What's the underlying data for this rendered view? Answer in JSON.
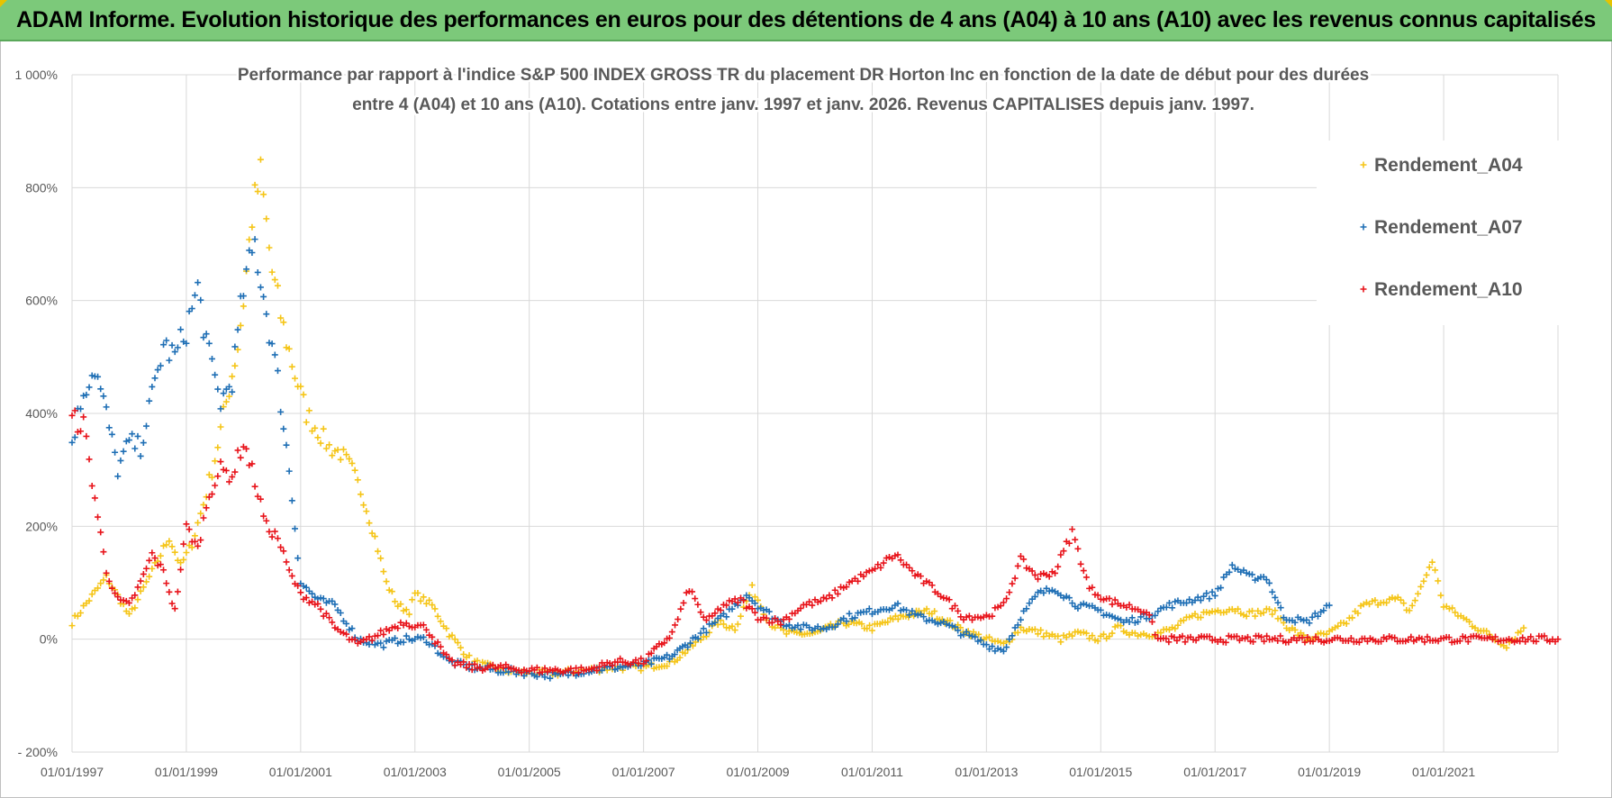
{
  "banner": {
    "title": "ADAM Informe. Evolution historique des performances en euros pour des détentions de 4 ans (A04) à 10 ans (A10) avec les revenus connus capitalisés"
  },
  "colors": {
    "banner_bg": "#7cc97a",
    "a04": "#f5c518",
    "a07": "#1f6fb5",
    "a10": "#e8141b",
    "grid": "#d9d9d9",
    "text": "#595959"
  },
  "chart_data": {
    "type": "scatter",
    "title_lines": [
      "Performance par rapport à l'indice S&P 500 INDEX GROSS TR  du placement DR Horton Inc en fonction de la date de début pour des durées",
      "entre 4 (A04) et 10 ans (A10).  Cotations entre janv. 1997 et janv. 2026. Revenus CAPITALISES  depuis janv. 1997."
    ],
    "xlabel": "",
    "ylabel": "",
    "x_range": [
      1997.0,
      2023.0
    ],
    "ylim": [
      -200,
      1000
    ],
    "y_ticks": [
      -200,
      0,
      200,
      400,
      600,
      800,
      1000
    ],
    "y_tick_labels": [
      "- 200%",
      "0%",
      "200%",
      "400%",
      "600%",
      "800%",
      "1 000%"
    ],
    "x_ticks": [
      1997,
      1999,
      2001,
      2003,
      2005,
      2007,
      2009,
      2011,
      2013,
      2015,
      2017,
      2019,
      2021
    ],
    "x_tick_labels": [
      "01/01/1997",
      "01/01/1999",
      "01/01/2001",
      "01/01/2003",
      "01/01/2005",
      "01/01/2007",
      "01/01/2009",
      "01/01/2011",
      "01/01/2013",
      "01/01/2015",
      "01/01/2017",
      "01/01/2019",
      "01/01/2021"
    ],
    "legend": [
      "Rendement_A04",
      "Rendement_A07",
      "Rendement_A10"
    ],
    "legend_position": "top-right",
    "grid": true,
    "series": [
      {
        "name": "Rendement_A04",
        "x": [
          1997.0,
          1997.3,
          1997.6,
          1997.9,
          1998.0,
          1998.3,
          1998.5,
          1998.7,
          1998.9,
          1999.1,
          1999.3,
          1999.5,
          1999.7,
          1999.9,
          2000.0,
          2000.15,
          2000.3,
          2000.5,
          2000.7,
          2000.9,
          2001.1,
          2001.3,
          2001.5,
          2001.7,
          2001.9,
          2002.1,
          2002.3,
          2002.5,
          2002.7,
          2002.9,
          2003.0,
          2003.3,
          2003.6,
          2004.0,
          2004.5,
          2005.0,
          2005.5,
          2006.0,
          2006.5,
          2007.0,
          2007.5,
          2008.0,
          2008.3,
          2008.6,
          2008.9,
          2009.2,
          2009.5,
          2010.0,
          2010.5,
          2011.0,
          2011.5,
          2012.0,
          2012.5,
          2013.0,
          2013.3,
          2013.6,
          2014.0,
          2014.3,
          2014.6,
          2015.0,
          2015.3,
          2015.6,
          2016.0,
          2016.3,
          2016.6,
          2017.0,
          2017.3,
          2017.6,
          2018.0,
          2018.3,
          2018.6,
          2019.0,
          2019.3,
          2019.6,
          2020.0,
          2020.2,
          2020.4,
          2020.6,
          2020.8,
          2021.0,
          2021.3,
          2021.6,
          2021.9,
          2022.1,
          2022.4
        ],
        "y": [
          30,
          70,
          110,
          60,
          40,
          100,
          140,
          180,
          130,
          170,
          240,
          320,
          420,
          520,
          600,
          750,
          820,
          650,
          550,
          470,
          400,
          370,
          340,
          330,
          300,
          250,
          180,
          100,
          60,
          50,
          80,
          60,
          10,
          -40,
          -55,
          -60,
          -60,
          -55,
          -50,
          -50,
          -40,
          0,
          30,
          20,
          90,
          30,
          10,
          10,
          30,
          20,
          40,
          50,
          20,
          0,
          -10,
          20,
          10,
          0,
          10,
          0,
          20,
          10,
          10,
          20,
          40,
          50,
          55,
          45,
          50,
          20,
          0,
          10,
          30,
          60,
          70,
          70,
          50,
          90,
          140,
          60,
          40,
          20,
          0,
          -10,
          20
        ]
      },
      {
        "name": "Rendement_A07",
        "x": [
          1997.0,
          1997.2,
          1997.4,
          1997.6,
          1997.8,
          1998.0,
          1998.2,
          1998.4,
          1998.6,
          1998.8,
          1999.0,
          1999.2,
          1999.4,
          1999.6,
          1999.8,
          2000.0,
          2000.2,
          2000.4,
          2000.6,
          2000.8,
          2001.0,
          2001.3,
          2001.6,
          2002.0,
          2002.4,
          2002.8,
          2003.2,
          2003.6,
          2004.0,
          2004.5,
          2005.0,
          2005.5,
          2006.0,
          2006.5,
          2007.0,
          2007.5,
          2008.0,
          2008.4,
          2008.8,
          2009.0,
          2009.4,
          2009.8,
          2010.2,
          2010.6,
          2011.0,
          2011.4,
          2011.8,
          2012.2,
          2012.6,
          2013.0,
          2013.3,
          2013.6,
          2013.9,
          2014.2,
          2014.6,
          2015.0,
          2015.4,
          2015.8,
          2016.2,
          2016.6,
          2017.0,
          2017.3,
          2017.6,
          2017.9,
          2018.2,
          2018.6,
          2019.0
        ],
        "y": [
          350,
          440,
          480,
          400,
          300,
          350,
          340,
          430,
          520,
          500,
          550,
          620,
          500,
          420,
          460,
          620,
          700,
          580,
          460,
          300,
          100,
          70,
          60,
          0,
          -10,
          0,
          0,
          -40,
          -50,
          -55,
          -60,
          -65,
          -55,
          -50,
          -45,
          -30,
          10,
          40,
          80,
          60,
          30,
          20,
          20,
          40,
          50,
          60,
          40,
          30,
          10,
          -10,
          -20,
          40,
          80,
          90,
          60,
          50,
          30,
          40,
          60,
          70,
          80,
          130,
          110,
          110,
          40,
          30,
          60
        ]
      },
      {
        "name": "Rendement_A10",
        "x": [
          1997.0,
          1997.2,
          1997.4,
          1997.6,
          1997.8,
          1998.0,
          1998.2,
          1998.4,
          1998.6,
          1998.8,
          1999.0,
          1999.2,
          1999.4,
          1999.6,
          1999.8,
          2000.0,
          2000.2,
          2000.4,
          2000.6,
          2000.8,
          2001.0,
          2001.3,
          2001.6,
          2002.0,
          2002.4,
          2002.8,
          2003.2,
          2003.6,
          2004.0,
          2004.5,
          2005.0,
          2005.5,
          2006.0,
          2006.5,
          2007.0,
          2007.5,
          2007.8,
          2008.1,
          2008.4,
          2008.7,
          2009.0,
          2009.4,
          2009.8,
          2010.2,
          2010.6,
          2011.0,
          2011.4,
          2011.8,
          2012.2,
          2012.6,
          2013.0,
          2013.3,
          2013.6,
          2013.9,
          2014.2,
          2014.5,
          2014.8,
          2015.1,
          2015.4,
          2015.8,
          2016.0,
          2017.0,
          2018.0,
          2019.0,
          2020.0,
          2021.0,
          2022.0,
          2023.0
        ],
        "y": [
          390,
          380,
          250,
          120,
          70,
          60,
          100,
          150,
          120,
          50,
          200,
          160,
          260,
          300,
          290,
          350,
          280,
          200,
          180,
          120,
          80,
          60,
          20,
          -10,
          10,
          30,
          20,
          -40,
          -50,
          -50,
          -55,
          -55,
          -55,
          -40,
          -40,
          10,
          90,
          30,
          60,
          70,
          40,
          30,
          60,
          70,
          100,
          120,
          150,
          110,
          80,
          40,
          40,
          60,
          140,
          110,
          120,
          190,
          90,
          70,
          60,
          50,
          0,
          0,
          0,
          0,
          0,
          0,
          0,
          0
        ]
      }
    ]
  }
}
